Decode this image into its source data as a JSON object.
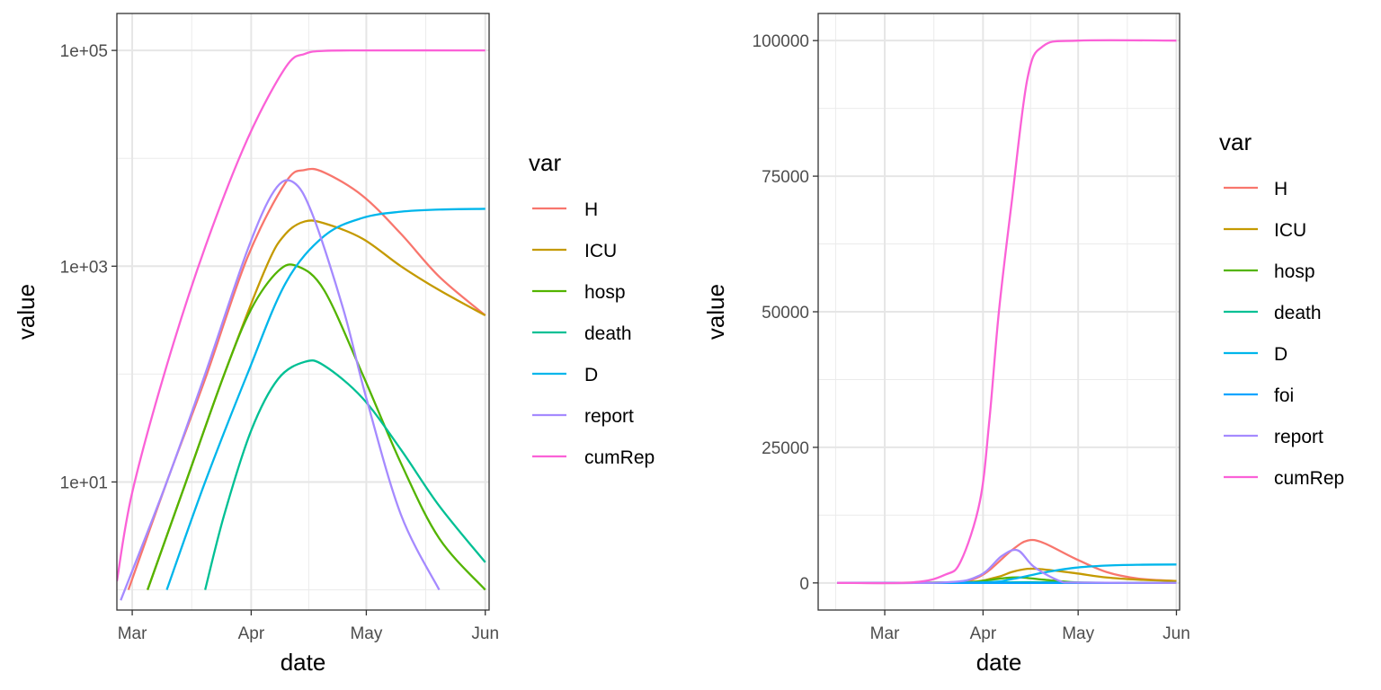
{
  "chart_data": [
    {
      "type": "line",
      "x_axis_type": "date",
      "y_scale": "log10",
      "xlabel": "date",
      "ylabel": "value",
      "xlim": [
        "2020-02-26",
        "2020-06-02"
      ],
      "ylim": [
        0.65,
        220000
      ],
      "x_ticks": [
        {
          "date": "2020-03-01",
          "label": "Mar"
        },
        {
          "date": "2020-04-01",
          "label": "Apr"
        },
        {
          "date": "2020-05-01",
          "label": "May"
        },
        {
          "date": "2020-06-01",
          "label": "Jun"
        }
      ],
      "y_ticks": [
        {
          "value": 10,
          "label": "1e+01"
        },
        {
          "value": 1000,
          "label": "1e+03"
        },
        {
          "value": 100000,
          "label": "1e+05"
        }
      ],
      "grid": true,
      "legend": {
        "title": "var",
        "position": "right",
        "entries": [
          "H",
          "ICU",
          "hosp",
          "death",
          "D",
          "report",
          "cumRep"
        ]
      },
      "series": [
        {
          "name": "H",
          "color": "#F8766D",
          "x": [
            "2020-02-29",
            "2020-03-10",
            "2020-03-20",
            "2020-03-31",
            "2020-04-10",
            "2020-04-15",
            "2020-04-20",
            "2020-04-30",
            "2020-05-10",
            "2020-05-20",
            "2020-06-01"
          ],
          "y": [
            1,
            10,
            90,
            1200,
            6000,
            7800,
            7400,
            4500,
            2000,
            800,
            350
          ]
        },
        {
          "name": "ICU",
          "color": "#C49A00",
          "x": [
            "2020-03-05",
            "2020-03-15",
            "2020-03-25",
            "2020-04-05",
            "2020-04-10",
            "2020-04-15",
            "2020-04-20",
            "2020-04-30",
            "2020-05-10",
            "2020-05-20",
            "2020-06-01"
          ],
          "y": [
            1,
            10,
            100,
            1000,
            2000,
            2600,
            2500,
            1800,
            1000,
            600,
            350
          ]
        },
        {
          "name": "hosp",
          "color": "#53B400",
          "x": [
            "2020-03-05",
            "2020-03-15",
            "2020-03-25",
            "2020-04-01",
            "2020-04-08",
            "2020-04-13",
            "2020-04-20",
            "2020-04-30",
            "2020-05-10",
            "2020-05-20",
            "2020-06-01"
          ],
          "y": [
            1,
            10,
            100,
            400,
            900,
            1000,
            600,
            100,
            15,
            3,
            1
          ]
        },
        {
          "name": "death",
          "color": "#00C094",
          "x": [
            "2020-03-20",
            "2020-03-25",
            "2020-04-01",
            "2020-04-08",
            "2020-04-15",
            "2020-04-20",
            "2020-04-30",
            "2020-05-10",
            "2020-05-20",
            "2020-06-01"
          ],
          "y": [
            1,
            5,
            30,
            90,
            130,
            120,
            60,
            20,
            6,
            1.8
          ]
        },
        {
          "name": "D",
          "color": "#00B6EB",
          "x": [
            "2020-03-10",
            "2020-03-20",
            "2020-03-31",
            "2020-04-10",
            "2020-04-20",
            "2020-04-30",
            "2020-05-10",
            "2020-05-20",
            "2020-06-01"
          ],
          "y": [
            1,
            10,
            100,
            700,
            1900,
            2800,
            3200,
            3350,
            3400
          ]
        },
        {
          "name": "report",
          "color": "#A58AFF",
          "x": [
            "2020-02-27",
            "2020-03-10",
            "2020-03-20",
            "2020-03-31",
            "2020-04-07",
            "2020-04-12",
            "2020-04-17",
            "2020-04-25",
            "2020-05-01",
            "2020-05-10",
            "2020-05-20"
          ],
          "y": [
            0.8,
            10,
            100,
            1400,
            5000,
            6000,
            3000,
            400,
            60,
            5,
            1
          ]
        },
        {
          "name": "cumRep",
          "color": "#FB61D7",
          "x": [
            "2020-02-26",
            "2020-03-01",
            "2020-03-10",
            "2020-03-20",
            "2020-03-31",
            "2020-04-10",
            "2020-04-15",
            "2020-04-20",
            "2020-05-01",
            "2020-06-01"
          ],
          "y": [
            1.2,
            8,
            120,
            1500,
            15000,
            70000,
            93000,
            99000,
            100000,
            100000
          ]
        }
      ]
    },
    {
      "type": "line",
      "x_axis_type": "date",
      "y_scale": "linear",
      "xlabel": "date",
      "ylabel": "value",
      "xlim": [
        "2020-02-09",
        "2020-06-02"
      ],
      "ylim": [
        -5000,
        105000
      ],
      "x_ticks": [
        {
          "date": "2020-03-01",
          "label": "Mar"
        },
        {
          "date": "2020-04-01",
          "label": "Apr"
        },
        {
          "date": "2020-05-01",
          "label": "May"
        },
        {
          "date": "2020-06-01",
          "label": "Jun"
        }
      ],
      "y_ticks": [
        {
          "value": 0,
          "label": "0"
        },
        {
          "value": 25000,
          "label": "25000"
        },
        {
          "value": 50000,
          "label": "50000"
        },
        {
          "value": 75000,
          "label": "75000"
        },
        {
          "value": 100000,
          "label": "100000"
        }
      ],
      "grid": true,
      "legend": {
        "title": "var",
        "position": "right",
        "entries": [
          "H",
          "ICU",
          "hosp",
          "death",
          "D",
          "foi",
          "report",
          "cumRep"
        ]
      },
      "series": [
        {
          "name": "H",
          "color": "#F8766D",
          "x": [
            "2020-02-15",
            "2020-03-20",
            "2020-03-31",
            "2020-04-10",
            "2020-04-15",
            "2020-04-20",
            "2020-04-30",
            "2020-05-10",
            "2020-05-20",
            "2020-06-01"
          ],
          "y": [
            0,
            90,
            1200,
            6000,
            7800,
            7400,
            4500,
            2000,
            800,
            350
          ]
        },
        {
          "name": "ICU",
          "color": "#C49A00",
          "x": [
            "2020-02-15",
            "2020-03-25",
            "2020-04-05",
            "2020-04-10",
            "2020-04-15",
            "2020-04-20",
            "2020-04-30",
            "2020-05-10",
            "2020-05-20",
            "2020-06-01"
          ],
          "y": [
            0,
            100,
            1000,
            2000,
            2600,
            2500,
            1800,
            1000,
            600,
            350
          ]
        },
        {
          "name": "hosp",
          "color": "#53B400",
          "x": [
            "2020-02-15",
            "2020-03-25",
            "2020-04-01",
            "2020-04-08",
            "2020-04-13",
            "2020-04-20",
            "2020-04-30",
            "2020-05-10",
            "2020-06-01"
          ],
          "y": [
            0,
            100,
            400,
            900,
            1000,
            600,
            100,
            15,
            0
          ]
        },
        {
          "name": "death",
          "color": "#00C094",
          "x": [
            "2020-02-15",
            "2020-04-01",
            "2020-04-08",
            "2020-04-15",
            "2020-04-20",
            "2020-04-30",
            "2020-05-10",
            "2020-06-01"
          ],
          "y": [
            0,
            30,
            90,
            130,
            120,
            60,
            20,
            2
          ]
        },
        {
          "name": "D",
          "color": "#00B6EB",
          "x": [
            "2020-02-15",
            "2020-03-31",
            "2020-04-10",
            "2020-04-20",
            "2020-04-30",
            "2020-05-10",
            "2020-05-20",
            "2020-06-01"
          ],
          "y": [
            0,
            100,
            700,
            1900,
            2800,
            3200,
            3350,
            3400
          ]
        },
        {
          "name": "foi",
          "color": "#06A4FF",
          "x": [
            "2020-02-15",
            "2020-06-01"
          ],
          "y": [
            0,
            0
          ]
        },
        {
          "name": "report",
          "color": "#A58AFF",
          "x": [
            "2020-02-15",
            "2020-03-20",
            "2020-03-31",
            "2020-04-07",
            "2020-04-12",
            "2020-04-17",
            "2020-04-25",
            "2020-05-01",
            "2020-06-01"
          ],
          "y": [
            0,
            100,
            1400,
            5000,
            6000,
            3000,
            400,
            60,
            0
          ]
        },
        {
          "name": "cumRep",
          "color": "#FB61D7",
          "x": [
            "2020-02-15",
            "2020-03-10",
            "2020-03-20",
            "2020-03-25",
            "2020-03-31",
            "2020-04-03",
            "2020-04-06",
            "2020-04-10",
            "2020-04-15",
            "2020-04-20",
            "2020-05-01",
            "2020-06-01"
          ],
          "y": [
            0,
            120,
            1500,
            4000,
            15000,
            30000,
            50000,
            70000,
            93000,
            99000,
            100000,
            100000
          ]
        }
      ]
    }
  ]
}
